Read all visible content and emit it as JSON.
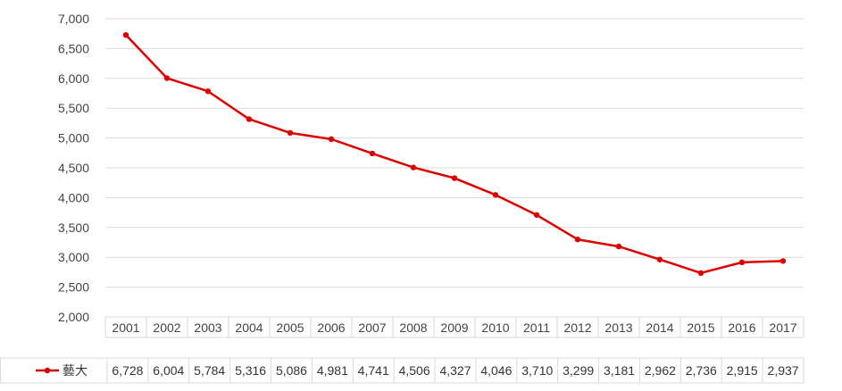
{
  "chart_data": {
    "type": "line",
    "categories": [
      "2001",
      "2002",
      "2003",
      "2004",
      "2005",
      "2006",
      "2007",
      "2008",
      "2009",
      "2010",
      "2011",
      "2012",
      "2013",
      "2014",
      "2015",
      "2016",
      "2017"
    ],
    "series": [
      {
        "name": "藝大",
        "color": "#dd0000",
        "values": [
          6728,
          6004,
          5784,
          5316,
          5086,
          4981,
          4741,
          4506,
          4327,
          4046,
          3710,
          3299,
          3181,
          2962,
          2736,
          2915,
          2937
        ],
        "labels": [
          "6,728",
          "6,004",
          "5,784",
          "5,316",
          "5,086",
          "4,981",
          "4,741",
          "4,506",
          "4,327",
          "4,046",
          "3,710",
          "3,299",
          "3,181",
          "2,962",
          "2,736",
          "2,915",
          "2,937"
        ]
      }
    ],
    "ylim": [
      2000,
      7000
    ],
    "yticks": [
      2000,
      2500,
      3000,
      3500,
      4000,
      4500,
      5000,
      5500,
      6000,
      6500,
      7000
    ],
    "ytick_labels": [
      "2,000",
      "2,500",
      "3,000",
      "3,500",
      "4,000",
      "4,500",
      "5,000",
      "5,500",
      "6,000",
      "6,500",
      "7,000"
    ],
    "grid": true,
    "legend": "data-table-row",
    "title": "",
    "xlabel": "",
    "ylabel": ""
  }
}
